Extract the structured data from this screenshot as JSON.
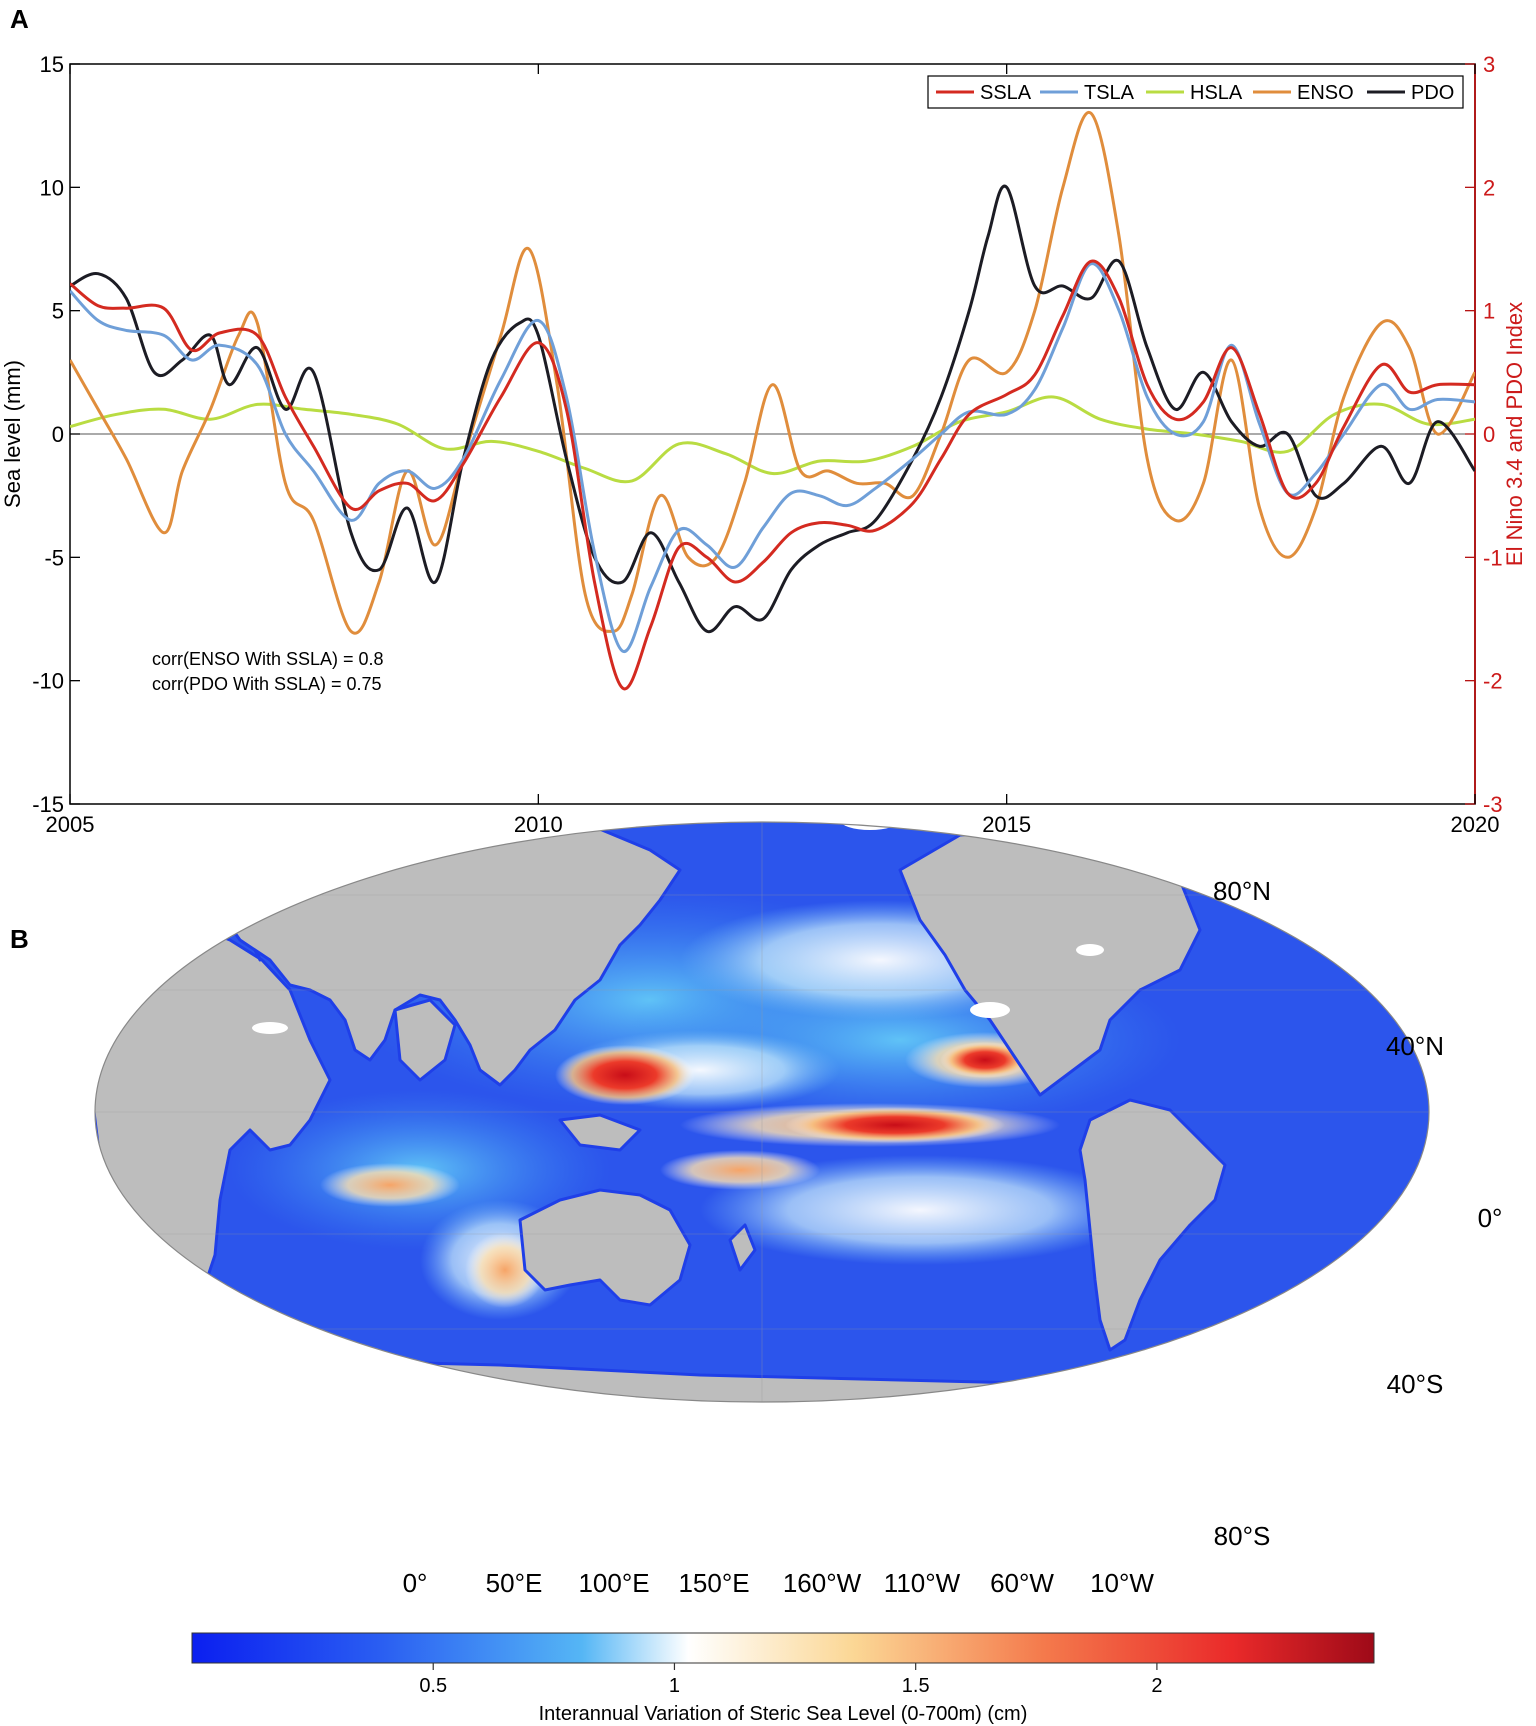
{
  "panel_a_label": "A",
  "panel_b_label": "B",
  "chart_data": [
    {
      "type": "line",
      "xlabel": "",
      "ylabel": "Sea level (mm)",
      "ylabel_right": "El Nino 3.4 and PDO Index",
      "xlim": [
        2005,
        2020
      ],
      "ylim": [
        -15,
        15
      ],
      "ylim_right": [
        -3,
        3
      ],
      "xticks": [
        2005,
        2010,
        2015,
        2020
      ],
      "xtick_labels": [
        "2005",
        "2010",
        "2015",
        "2020"
      ],
      "yticks": [
        -15,
        -10,
        -5,
        0,
        5,
        10,
        15
      ],
      "ytick_labels": [
        "-15",
        "-10",
        "-5",
        "0",
        "5",
        "10",
        "15"
      ],
      "yticks_right": [
        -3,
        -2,
        -1,
        0,
        1,
        2,
        3
      ],
      "ytick_right_labels": [
        "-3",
        "-2",
        "-1",
        "0",
        "1",
        "2",
        "3"
      ],
      "grid": false,
      "zero_line": true,
      "legend_position": "top-right",
      "right_axis_color": "#cc1a1a",
      "annotations": [
        "corr(ENSO With SSLA) = 0.8",
        "corr(PDO With SSLA) = 0.75"
      ],
      "series": [
        {
          "name": "SSLA",
          "axis": "left",
          "color": "#d42a20",
          "x": [
            2005.0,
            2005.3,
            2005.6,
            2006.0,
            2006.3,
            2006.6,
            2007.0,
            2007.3,
            2007.6,
            2008.0,
            2008.3,
            2008.6,
            2008.9,
            2009.2,
            2009.6,
            2010.0,
            2010.3,
            2010.6,
            2010.9,
            2011.2,
            2011.5,
            2011.8,
            2012.1,
            2012.4,
            2012.7,
            2013.0,
            2013.3,
            2013.6,
            2014.0,
            2014.3,
            2014.6,
            2015.0,
            2015.3,
            2015.6,
            2015.9,
            2016.2,
            2016.5,
            2016.8,
            2017.1,
            2017.4,
            2017.7,
            2018.0,
            2018.3,
            2018.6,
            2019.0,
            2019.3,
            2019.6,
            2020.0
          ],
          "y": [
            6.1,
            5.2,
            5.1,
            5.1,
            3.4,
            4.1,
            4.0,
            1.5,
            -0.5,
            -3.0,
            -2.3,
            -2.0,
            -2.7,
            -1.2,
            1.5,
            3.7,
            1.0,
            -6.0,
            -10.3,
            -7.8,
            -4.6,
            -5.0,
            -6.0,
            -5.2,
            -4.0,
            -3.6,
            -3.7,
            -3.9,
            -2.8,
            -1.0,
            0.8,
            1.6,
            2.4,
            4.8,
            7.0,
            5.5,
            2.0,
            0.6,
            1.3,
            3.5,
            0.8,
            -2.4,
            -2.0,
            0.3,
            2.8,
            1.7,
            2.0,
            2.0
          ]
        },
        {
          "name": "TSLA",
          "axis": "left",
          "color": "#6f9fd8",
          "x": [
            2005.0,
            2005.3,
            2005.6,
            2006.0,
            2006.3,
            2006.6,
            2007.0,
            2007.3,
            2007.6,
            2008.0,
            2008.3,
            2008.6,
            2008.9,
            2009.2,
            2009.6,
            2010.0,
            2010.3,
            2010.6,
            2010.9,
            2011.2,
            2011.5,
            2011.8,
            2012.1,
            2012.4,
            2012.7,
            2013.0,
            2013.3,
            2013.6,
            2014.0,
            2014.3,
            2014.6,
            2015.0,
            2015.3,
            2015.6,
            2015.9,
            2016.2,
            2016.5,
            2016.8,
            2017.1,
            2017.4,
            2017.7,
            2018.0,
            2018.3,
            2018.6,
            2019.0,
            2019.3,
            2019.6,
            2020.0
          ],
          "y": [
            5.8,
            4.6,
            4.2,
            4.0,
            3.0,
            3.6,
            2.8,
            0.0,
            -1.5,
            -3.5,
            -2.0,
            -1.5,
            -2.2,
            -1.0,
            2.2,
            4.6,
            1.5,
            -4.8,
            -8.8,
            -6.2,
            -3.9,
            -4.5,
            -5.4,
            -3.8,
            -2.4,
            -2.5,
            -2.9,
            -2.2,
            -1.0,
            0.0,
            0.9,
            0.8,
            1.8,
            4.3,
            6.9,
            5.0,
            1.5,
            0.0,
            0.5,
            3.6,
            0.4,
            -2.4,
            -1.6,
            0.0,
            2.0,
            1.0,
            1.4,
            1.3
          ]
        },
        {
          "name": "HSLA",
          "axis": "left",
          "color": "#b9dc42",
          "x": [
            2005.0,
            2005.5,
            2006.0,
            2006.5,
            2007.0,
            2007.5,
            2008.0,
            2008.5,
            2009.0,
            2009.5,
            2010.0,
            2010.5,
            2011.0,
            2011.5,
            2012.0,
            2012.5,
            2013.0,
            2013.5,
            2014.0,
            2014.5,
            2015.0,
            2015.5,
            2016.0,
            2016.5,
            2017.0,
            2017.5,
            2018.0,
            2018.5,
            2019.0,
            2019.5,
            2020.0
          ],
          "y": [
            0.3,
            0.8,
            1.0,
            0.6,
            1.2,
            1.0,
            0.8,
            0.4,
            -0.6,
            -0.3,
            -0.7,
            -1.4,
            -1.9,
            -0.4,
            -0.8,
            -1.6,
            -1.1,
            -1.1,
            -0.5,
            0.5,
            0.9,
            1.5,
            0.6,
            0.2,
            0.0,
            -0.3,
            -0.7,
            0.8,
            1.2,
            0.4,
            0.6
          ]
        },
        {
          "name": "ENSO",
          "axis": "right",
          "color": "#e08d3c",
          "x": [
            2005.0,
            2005.3,
            2005.6,
            2006.0,
            2006.2,
            2006.5,
            2006.8,
            2007.0,
            2007.3,
            2007.6,
            2008.0,
            2008.3,
            2008.6,
            2008.9,
            2009.2,
            2009.6,
            2009.9,
            2010.2,
            2010.5,
            2010.8,
            2011.0,
            2011.3,
            2011.6,
            2011.9,
            2012.2,
            2012.5,
            2012.8,
            2013.1,
            2013.4,
            2013.7,
            2014.0,
            2014.3,
            2014.6,
            2015.0,
            2015.3,
            2015.6,
            2015.9,
            2016.2,
            2016.5,
            2016.8,
            2017.1,
            2017.4,
            2017.7,
            2018.0,
            2018.3,
            2018.6,
            2019.0,
            2019.3,
            2019.6,
            2020.0
          ],
          "y": [
            0.6,
            0.2,
            -0.2,
            -0.8,
            -0.3,
            0.2,
            0.8,
            0.9,
            -0.4,
            -0.7,
            -1.6,
            -1.2,
            -0.3,
            -0.9,
            -0.2,
            0.8,
            1.5,
            0.4,
            -1.3,
            -1.6,
            -1.3,
            -0.5,
            -1.0,
            -1.0,
            -0.4,
            0.4,
            -0.3,
            -0.3,
            -0.4,
            -0.4,
            -0.5,
            0.0,
            0.6,
            0.5,
            1.0,
            2.0,
            2.6,
            1.6,
            -0.2,
            -0.7,
            -0.4,
            0.6,
            -0.6,
            -1.0,
            -0.6,
            0.3,
            0.9,
            0.7,
            0.0,
            0.5
          ]
        },
        {
          "name": "PDO",
          "axis": "right",
          "color": "#1c1c24",
          "x": [
            2005.0,
            2005.3,
            2005.6,
            2005.9,
            2006.2,
            2006.5,
            2006.7,
            2007.0,
            2007.3,
            2007.6,
            2008.0,
            2008.3,
            2008.6,
            2008.9,
            2009.2,
            2009.5,
            2009.8,
            2010.0,
            2010.3,
            2010.6,
            2010.9,
            2011.2,
            2011.5,
            2011.8,
            2012.1,
            2012.4,
            2012.7,
            2013.0,
            2013.3,
            2013.6,
            2014.0,
            2014.3,
            2014.6,
            2014.8,
            2015.0,
            2015.3,
            2015.6,
            2015.9,
            2016.2,
            2016.5,
            2016.8,
            2017.1,
            2017.4,
            2017.7,
            2018.0,
            2018.3,
            2018.6,
            2019.0,
            2019.3,
            2019.6,
            2020.0
          ],
          "y": [
            1.2,
            1.3,
            1.1,
            0.5,
            0.6,
            0.8,
            0.4,
            0.7,
            0.2,
            0.5,
            -0.8,
            -1.1,
            -0.6,
            -1.2,
            -0.2,
            0.6,
            0.9,
            0.8,
            -0.2,
            -1.0,
            -1.2,
            -0.8,
            -1.2,
            -1.6,
            -1.4,
            -1.5,
            -1.1,
            -0.9,
            -0.8,
            -0.7,
            -0.2,
            0.3,
            1.0,
            1.6,
            2.0,
            1.2,
            1.2,
            1.1,
            1.4,
            0.7,
            0.2,
            0.5,
            0.1,
            -0.1,
            0.0,
            -0.5,
            -0.4,
            -0.1,
            -0.4,
            0.1,
            -0.3
          ]
        }
      ]
    },
    {
      "type": "heatmap",
      "xtick_labels": [
        "0°",
        "50°E",
        "100°E",
        "150°E",
        "160°W",
        "110°W",
        "60°W",
        "10°W"
      ],
      "ytick_labels": [
        "80°N",
        "40°N",
        "0°",
        "40°S",
        "80°S"
      ],
      "colorbar_label": "Interannual Variation of Steric Sea Level  (0-700m) (cm)",
      "colorbar_ticks": [
        0.5,
        1,
        1.5,
        2
      ],
      "colorbar_tick_labels": [
        "0.5",
        "1",
        "1.5",
        "2"
      ],
      "colorbar_range": [
        0,
        2.45
      ],
      "land_color": "#bdbdbd",
      "ocean_low_color": "#1f3fe8",
      "ocean_high_color": "#c80d18"
    }
  ]
}
